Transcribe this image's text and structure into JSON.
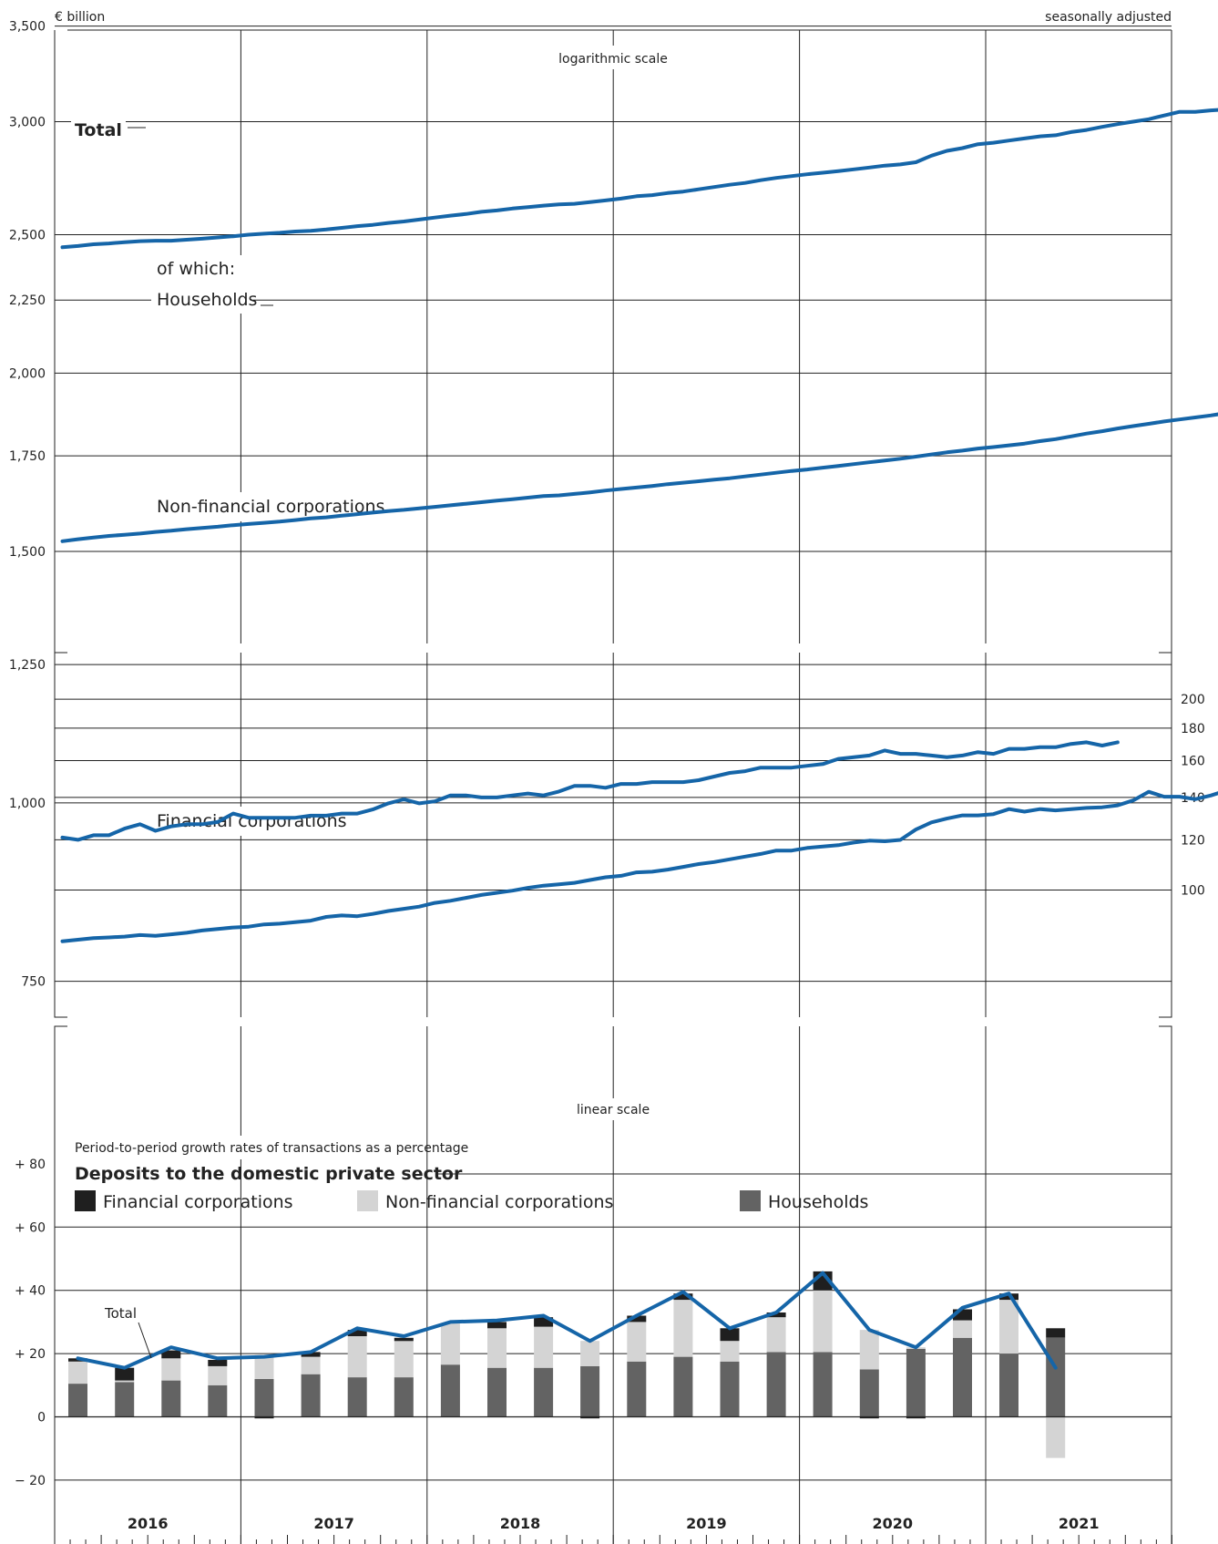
{
  "header": {
    "unit": "€ billion",
    "note": "seasonally adjusted"
  },
  "top_panel": {
    "scale_label": "logarithmic scale",
    "y_ticks": [
      "3,500",
      "3,000",
      "2,500",
      "2,250",
      "2,000",
      "1,750",
      "1,500",
      "1,250",
      "1,000",
      "750"
    ],
    "y_values": [
      3500,
      3000,
      2500,
      2250,
      2000,
      1750,
      1500,
      1250,
      1000,
      750
    ]
  },
  "fc_panel": {
    "y_ticks": [
      "200",
      "180",
      "160",
      "140",
      "120",
      "100"
    ],
    "y_values": [
      200,
      180,
      160,
      140,
      120,
      100
    ]
  },
  "bottom_panel": {
    "scale_label": "linear scale",
    "subtitle": "Period-to-period growth rates of transactions as a percentage",
    "title": "Deposits to the domestic private sector",
    "y_ticks": [
      "+ 80",
      "+ 60",
      "+ 40",
      "+ 20",
      "0",
      "− 20"
    ],
    "y_values": [
      80,
      60,
      40,
      20,
      0,
      -20
    ],
    "total_label": "Total"
  },
  "legend": {
    "financial": "Financial corporations",
    "nonfinancial": "Non-financial corporations",
    "households": "Households"
  },
  "series_labels": {
    "total": "Total",
    "of_which": "of which:",
    "households": "Households",
    "nfc": "Non-financial corporations",
    "fc": "Financial corporations"
  },
  "x_axis": {
    "years": [
      "2016",
      "2017",
      "2018",
      "2019",
      "2020",
      "2021"
    ]
  },
  "colors": {
    "line": "#1565a8",
    "financial": "#1f1f1f",
    "nonfinancial": "#d4d4d4",
    "households": "#636363",
    "grid": "#222222"
  },
  "chart_data": [
    {
      "type": "line",
      "title": "",
      "yscale": "log",
      "ylim": [
        620,
        3800
      ],
      "x_unit": "month",
      "x_start": "2016-01",
      "series": [
        {
          "name": "Total",
          "values": [
            2450,
            2455,
            2462,
            2465,
            2470,
            2474,
            2476,
            2476,
            2480,
            2484,
            2489,
            2494,
            2500,
            2504,
            2508,
            2513,
            2516,
            2521,
            2528,
            2535,
            2540,
            2548,
            2554,
            2562,
            2570,
            2578,
            2585,
            2594,
            2600,
            2608,
            2614,
            2620,
            2625,
            2628,
            2635,
            2642,
            2650,
            2660,
            2665,
            2674,
            2680,
            2690,
            2700,
            2710,
            2718,
            2730,
            2740,
            2748,
            2756,
            2763,
            2770,
            2778,
            2786,
            2795,
            2800,
            2810,
            2840,
            2862,
            2875,
            2893,
            2900,
            2910,
            2920,
            2930,
            2935,
            2950,
            2960,
            2975,
            2988,
            3000,
            3012,
            3030,
            3048,
            3048,
            3055,
            3060,
            3072,
            3085
          ]
        },
        {
          "name": "Households",
          "values": [
            1525,
            1530,
            1534,
            1538,
            1541,
            1544,
            1548,
            1551,
            1555,
            1558,
            1561,
            1565,
            1568,
            1571,
            1574,
            1578,
            1582,
            1585,
            1589,
            1593,
            1597,
            1601,
            1604,
            1608,
            1612,
            1616,
            1620,
            1624,
            1628,
            1632,
            1636,
            1640,
            1642,
            1646,
            1650,
            1655,
            1659,
            1663,
            1667,
            1672,
            1676,
            1680,
            1684,
            1688,
            1693,
            1698,
            1703,
            1708,
            1712,
            1717,
            1722,
            1727,
            1732,
            1737,
            1742,
            1748,
            1754,
            1760,
            1765,
            1771,
            1775,
            1780,
            1785,
            1792,
            1798,
            1806,
            1814,
            1821,
            1829,
            1836,
            1843,
            1850,
            1856,
            1862,
            1868,
            1875,
            1882,
            1890
          ]
        },
        {
          "name": "Non-financial corporations",
          "values": [
            800,
            802,
            804,
            805,
            806,
            808,
            807,
            809,
            811,
            814,
            816,
            818,
            819,
            822,
            823,
            825,
            827,
            832,
            834,
            833,
            836,
            840,
            843,
            846,
            851,
            854,
            858,
            862,
            865,
            868,
            872,
            875,
            877,
            879,
            883,
            887,
            889,
            894,
            895,
            898,
            902,
            906,
            909,
            913,
            917,
            921,
            926,
            926,
            930,
            932,
            934,
            938,
            941,
            940,
            942,
            958,
            969,
            975,
            980,
            980,
            982,
            990,
            986,
            990,
            988,
            990,
            992,
            993,
            996,
            1004,
            1018,
            1010,
            1010,
            1006,
            1012,
            1020
          ]
        }
      ]
    },
    {
      "type": "line",
      "title": "",
      "yscale": "log",
      "ylim": [
        88,
        225
      ],
      "x_unit": "month",
      "x_start": "2016-01",
      "series": [
        {
          "name": "Financial corporations",
          "values": [
            121,
            120,
            122,
            122,
            125,
            127,
            124,
            126,
            127,
            127,
            128,
            132,
            130,
            130,
            130,
            130,
            131,
            131,
            132,
            132,
            134,
            137,
            139,
            137,
            138,
            141,
            141,
            140,
            140,
            141,
            142,
            141,
            143,
            146,
            146,
            145,
            147,
            147,
            148,
            148,
            148,
            149,
            151,
            153,
            154,
            156,
            156,
            156,
            157,
            158,
            161,
            162,
            163,
            166,
            164,
            164,
            163,
            162,
            163,
            165,
            164,
            167,
            167,
            168,
            168,
            170,
            171,
            169,
            171
          ]
        }
      ]
    },
    {
      "type": "bar",
      "title": "Deposits to the domestic private sector",
      "stacked": true,
      "ylim": [
        -30,
        92
      ],
      "x_unit": "quarter",
      "categories": [
        "2016 Q1",
        "2016 Q2",
        "2016 Q3",
        "2016 Q4",
        "2017 Q1",
        "2017 Q2",
        "2017 Q3",
        "2017 Q4",
        "2018 Q1",
        "2018 Q2",
        "2018 Q3",
        "2018 Q4",
        "2019 Q1",
        "2019 Q2",
        "2019 Q3",
        "2019 Q4",
        "2020 Q1",
        "2020 Q2",
        "2020 Q3",
        "2020 Q4",
        "2021 Q1",
        "2021 Q2"
      ],
      "series": [
        {
          "name": "Households",
          "values": [
            10.5,
            11,
            11.5,
            10,
            12,
            13.5,
            12.5,
            12.5,
            16.5,
            15.5,
            15.5,
            16,
            17.5,
            19,
            17.5,
            20.5,
            20.5,
            15,
            21.5,
            25,
            20,
            25
          ]
        },
        {
          "name": "Non-financial corporations",
          "values": [
            7,
            0.5,
            7,
            6,
            7.5,
            5.5,
            13,
            11.5,
            13,
            12.5,
            13,
            8,
            12.5,
            18,
            6.5,
            11,
            19.5,
            12.5,
            0.5,
            5.5,
            17,
            -13
          ]
        },
        {
          "name": "Financial corporations",
          "values": [
            1,
            4,
            2.5,
            2,
            -0.5,
            1.5,
            2,
            1,
            0,
            2,
            3,
            -0.5,
            2,
            2,
            4,
            1.5,
            6,
            -0.5,
            -0.5,
            3.5,
            2,
            3
          ]
        },
        {
          "name": "Total",
          "values": [
            18.5,
            15.5,
            22,
            18.5,
            19,
            20.5,
            28,
            25.5,
            30,
            30.5,
            32,
            24,
            32,
            39.5,
            28,
            33,
            45.5,
            27.5,
            22,
            34.5,
            39,
            15.5
          ]
        }
      ]
    }
  ]
}
